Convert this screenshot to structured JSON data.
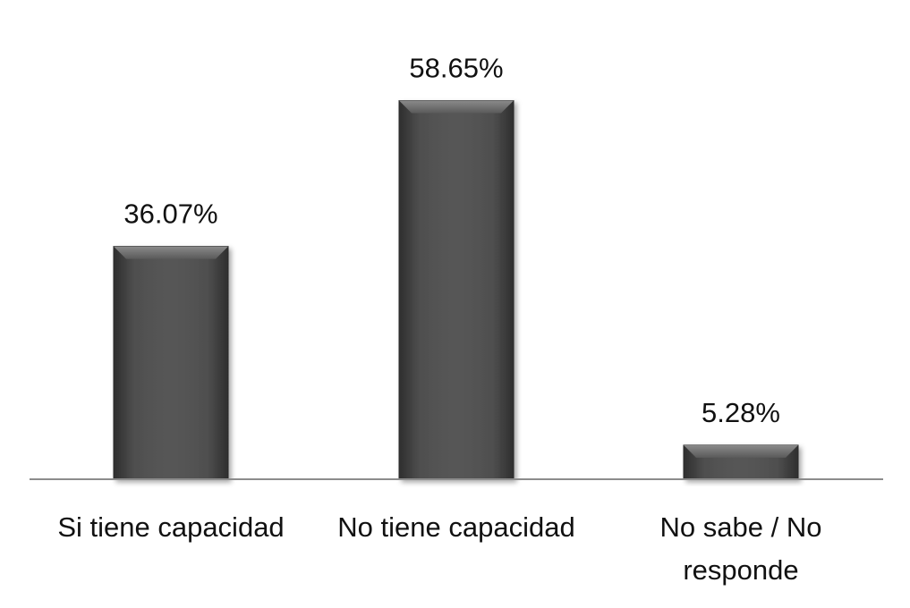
{
  "chart_data": {
    "type": "bar",
    "title": "",
    "xlabel": "",
    "ylabel": "",
    "categories": [
      "Si tiene capacidad",
      "No tiene capacidad",
      "No sabe / No responde"
    ],
    "values": [
      36.07,
      58.65,
      5.28
    ],
    "value_labels": [
      "36.07%",
      "58.65%",
      "5.28%"
    ],
    "ylim": [
      0,
      60
    ],
    "grid": false,
    "legend": "none",
    "bar_color": "#4a4a4a",
    "axis_color": "#888888"
  }
}
